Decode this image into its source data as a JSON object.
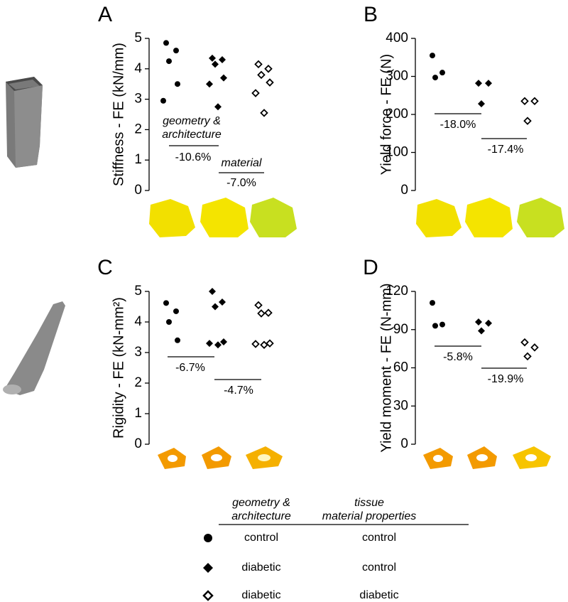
{
  "chart_data": [
    {
      "type": "strip",
      "panel": "A",
      "ylabel": "Stiffness - FE (kN/mm)",
      "ylim": [
        0,
        5
      ],
      "yticks": [
        0,
        1,
        2,
        3,
        4,
        5
      ],
      "series": [
        {
          "marker": "circle",
          "color": "#000000",
          "values": [
            4.85,
            4.6,
            4.25,
            3.5,
            2.95
          ]
        },
        {
          "marker": "diamond",
          "color": "#000000",
          "values": [
            4.35,
            4.3,
            4.15,
            3.7,
            3.5,
            2.75
          ]
        },
        {
          "marker": "open-diamond",
          "color": "#000000",
          "values": [
            4.15,
            4.0,
            3.8,
            3.55,
            3.2,
            2.55
          ]
        }
      ],
      "annotations": [
        "geometry &",
        "architecture",
        "-10.6%",
        "material",
        "-7.0%"
      ]
    },
    {
      "type": "strip",
      "panel": "B",
      "ylabel": "Yield force - FE (N)",
      "ylim": [
        0,
        400
      ],
      "yticks": [
        0,
        100,
        200,
        300,
        400
      ],
      "series": [
        {
          "marker": "circle",
          "color": "#000000",
          "values": [
            355,
            310,
            297
          ]
        },
        {
          "marker": "diamond",
          "color": "#000000",
          "values": [
            282,
            282,
            228
          ]
        },
        {
          "marker": "open-diamond",
          "color": "#000000",
          "values": [
            235,
            235,
            183
          ]
        }
      ],
      "annotations": [
        "-18.0%",
        "-17.4%"
      ]
    },
    {
      "type": "strip",
      "panel": "C",
      "ylabel": "Rigidity - FE (kN-mm²)",
      "ylim": [
        0,
        5
      ],
      "yticks": [
        0,
        1,
        2,
        3,
        4,
        5
      ],
      "series": [
        {
          "marker": "circle",
          "color": "#000000",
          "values": [
            4.62,
            4.35,
            4.0,
            3.4
          ]
        },
        {
          "marker": "diamond",
          "color": "#000000",
          "values": [
            5.0,
            4.65,
            4.5,
            3.35,
            3.3,
            3.25
          ]
        },
        {
          "marker": "open-diamond",
          "color": "#000000",
          "values": [
            4.55,
            4.3,
            4.28,
            3.3,
            3.28,
            3.25
          ]
        }
      ],
      "annotations": [
        "-6.7%",
        "-4.7%"
      ]
    },
    {
      "type": "strip",
      "panel": "D",
      "ylabel": "Yield moment - FE (N-mm)",
      "ylim": [
        0,
        120
      ],
      "yticks": [
        0,
        30,
        60,
        90,
        120
      ],
      "series": [
        {
          "marker": "circle",
          "color": "#000000",
          "values": [
            111,
            94,
            93
          ]
        },
        {
          "marker": "diamond",
          "color": "#000000",
          "values": [
            96,
            95,
            89
          ]
        },
        {
          "marker": "open-diamond",
          "color": "#000000",
          "values": [
            80,
            76,
            69
          ]
        }
      ],
      "annotations": [
        "-5.8%",
        "-19.9%"
      ]
    }
  ],
  "legend": {
    "headers": [
      [
        "geometry &",
        "architecture"
      ],
      [
        "tissue",
        "material properties"
      ]
    ],
    "rows": [
      [
        "control",
        "control"
      ],
      [
        "diabetic",
        "control"
      ],
      [
        "diabetic",
        "diabetic"
      ]
    ]
  }
}
